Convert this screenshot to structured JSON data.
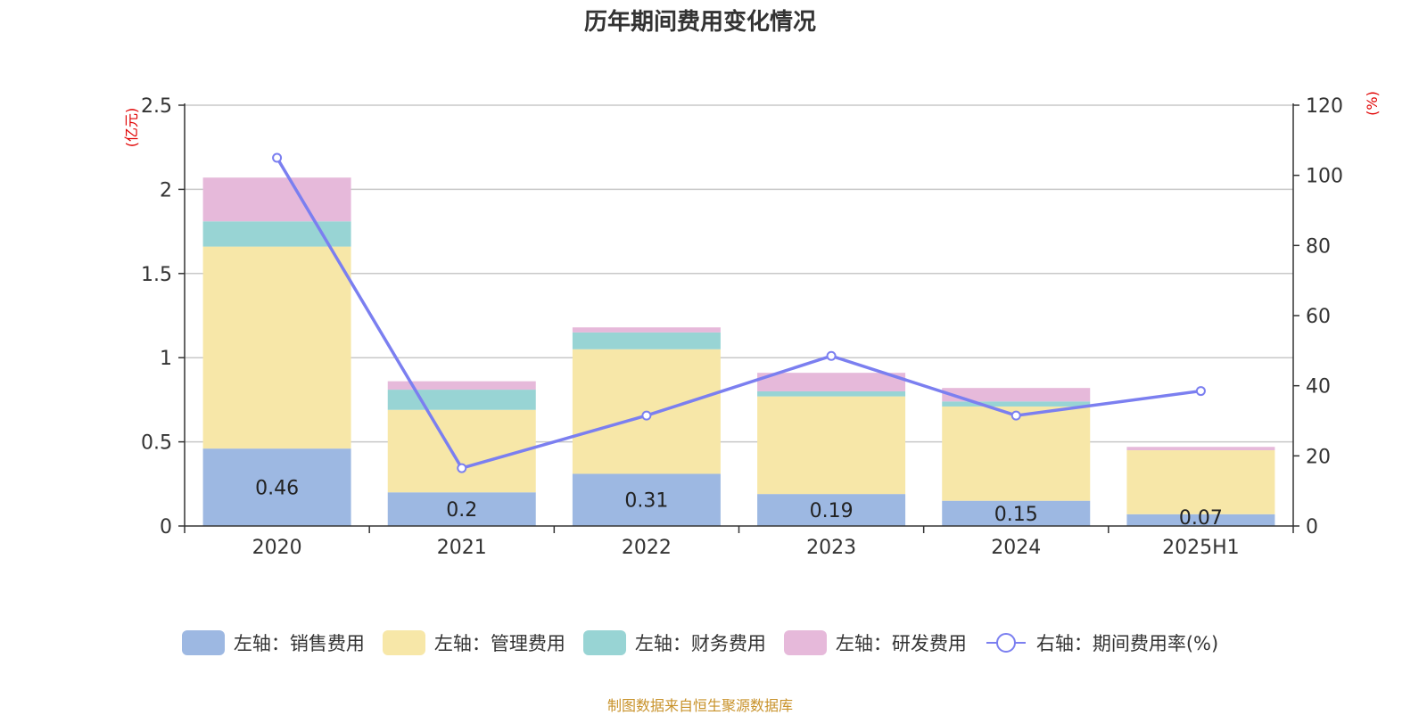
{
  "title": "历年期间费用变化情况",
  "source": "制图数据来自恒生聚源数据库",
  "colors": {
    "sales": "#9db8e2",
    "admin": "#f7e7a8",
    "finance": "#98d4d4",
    "rnd": "#e6b9da",
    "rate_line": "#7b7ff0",
    "axis_unit": "#e00000"
  },
  "chart_data": {
    "type": "bar",
    "stacked": true,
    "categories": [
      "2020",
      "2021",
      "2022",
      "2023",
      "2024",
      "2025H1"
    ],
    "left_axis": {
      "unit_label": "(亿元)",
      "ylim": [
        0,
        2.5
      ],
      "ticks": [
        "0",
        "0.5",
        "1",
        "1.5",
        "2",
        "2.5"
      ]
    },
    "right_axis": {
      "unit_label": "(%)",
      "ylim": [
        0,
        120
      ],
      "ticks": [
        "0",
        "20",
        "40",
        "60",
        "80",
        "100",
        "120"
      ]
    },
    "series": [
      {
        "name": "左轴：销售费用",
        "axis": "left",
        "values": [
          0.46,
          0.2,
          0.31,
          0.19,
          0.15,
          0.07
        ],
        "data_labels": [
          "0.46",
          "0.2",
          "0.31",
          "0.19",
          "0.15",
          "0.07"
        ]
      },
      {
        "name": "左轴：管理费用",
        "axis": "left",
        "values": [
          1.2,
          0.49,
          0.74,
          0.58,
          0.56,
          0.38
        ]
      },
      {
        "name": "左轴：财务费用",
        "axis": "left",
        "values": [
          0.15,
          0.12,
          0.1,
          0.03,
          0.03,
          0.0
        ]
      },
      {
        "name": "左轴：研发费用",
        "axis": "left",
        "values": [
          0.26,
          0.05,
          0.03,
          0.11,
          0.08,
          0.02
        ]
      },
      {
        "name": "右轴：期间费用率(%)",
        "axis": "right",
        "type": "line",
        "values": [
          105,
          16.5,
          31.5,
          48.5,
          31.5,
          38.5
        ]
      }
    ],
    "grid": true,
    "legend_position": "bottom"
  }
}
